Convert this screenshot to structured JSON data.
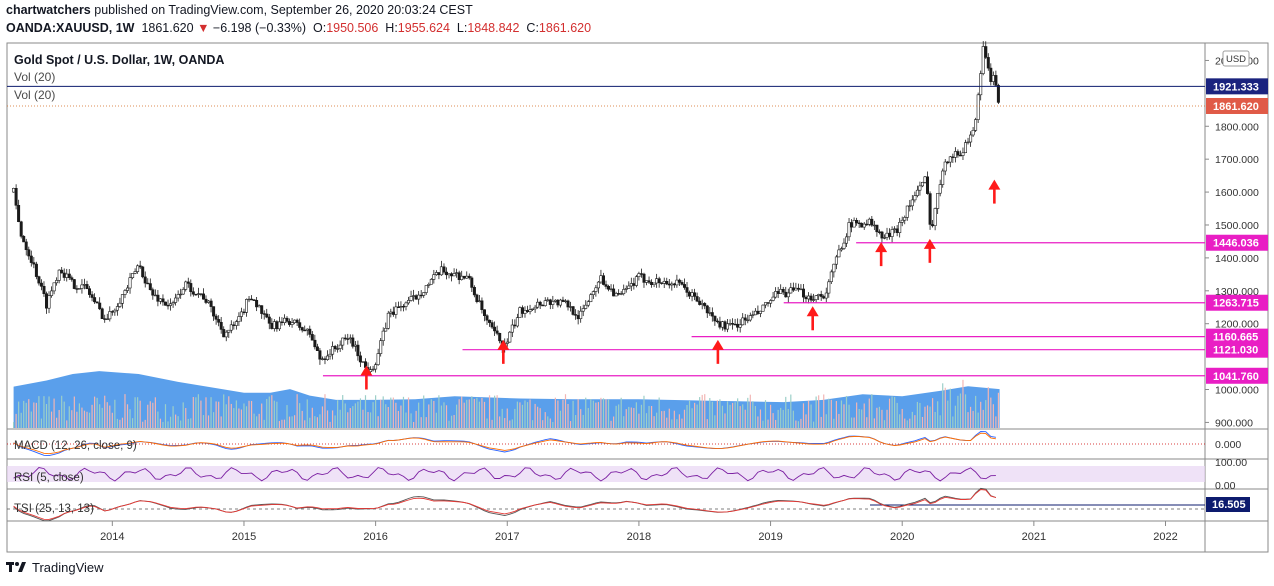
{
  "header": {
    "publisher": "chartwatchers",
    "published_text": "published on TradingView.com, September 26, 2020 20:03:24 CEST",
    "symbol": "OANDA:XAUUSD, 1W",
    "last": "1861.620",
    "change": "−6.198 (−0.33%)",
    "o_label": "O:",
    "o": "1950.506",
    "h_label": "H:",
    "h": "1955.624",
    "l_label": "L:",
    "l": "1848.842",
    "c_label": "C:",
    "c": "1861.620"
  },
  "legend": {
    "title": "Gold Spot / U.S. Dollar, 1W, OANDA",
    "vol1": "Vol (20)",
    "vol2": "Vol (20)"
  },
  "footer": {
    "brand": "TradingView"
  },
  "colors": {
    "up": "#26a69a",
    "down": "#ef5350",
    "candle_body_up": "#ffffff",
    "candle_body_dn": "#1a1a1a",
    "candle_wick": "#1a1a1a",
    "support": "#e91ec4",
    "arrow": "#ff1a1a",
    "volume_area": "#3d8ee8",
    "price_tag": "#e05a47",
    "level_tag": "#1a237e"
  },
  "chart_data": {
    "type": "candlestick",
    "title": "Gold Spot / U.S. Dollar, 1W, OANDA",
    "currency": "USD",
    "x_ticks": [
      "2014",
      "2015",
      "2016",
      "2017",
      "2018",
      "2019",
      "2020",
      "2021",
      "2022"
    ],
    "x_tick_years": [
      2014,
      2015,
      2016,
      2017,
      2018,
      2019,
      2020,
      2021,
      2022
    ],
    "x_range": [
      2013.2,
      2022.3
    ],
    "y_range": [
      880,
      2050
    ],
    "y_ticks": [
      {
        "label": "2000.000",
        "value": 2000
      },
      {
        "label": "1800.000",
        "value": 1800
      },
      {
        "label": "1700.000",
        "value": 1700
      },
      {
        "label": "1600.000",
        "value": 1600
      },
      {
        "label": "1500.000",
        "value": 1500
      },
      {
        "label": "1400.000",
        "value": 1400
      },
      {
        "label": "1300.000",
        "value": 1300
      },
      {
        "label": "1200.000",
        "value": 1200
      },
      {
        "label": "1000.000",
        "value": 1000
      },
      {
        "label": "900.000",
        "value": 900
      }
    ],
    "price_path": [
      [
        2013.25,
        1600
      ],
      [
        2013.3,
        1480
      ],
      [
        2013.4,
        1380
      ],
      [
        2013.5,
        1260
      ],
      [
        2013.6,
        1370
      ],
      [
        2013.7,
        1320
      ],
      [
        2013.8,
        1310
      ],
      [
        2013.95,
        1210
      ],
      [
        2014.1,
        1300
      ],
      [
        2014.2,
        1380
      ],
      [
        2014.3,
        1290
      ],
      [
        2014.45,
        1250
      ],
      [
        2014.55,
        1320
      ],
      [
        2014.7,
        1280
      ],
      [
        2014.85,
        1170
      ],
      [
        2014.95,
        1200
      ],
      [
        2015.05,
        1290
      ],
      [
        2015.2,
        1190
      ],
      [
        2015.35,
        1210
      ],
      [
        2015.5,
        1170
      ],
      [
        2015.58,
        1090
      ],
      [
        2015.8,
        1160
      ],
      [
        2015.93,
        1060
      ],
      [
        2016.0,
        1080
      ],
      [
        2016.1,
        1230
      ],
      [
        2016.3,
        1280
      ],
      [
        2016.5,
        1360
      ],
      [
        2016.7,
        1340
      ],
      [
        2016.85,
        1200
      ],
      [
        2016.98,
        1130
      ],
      [
        2017.1,
        1240
      ],
      [
        2017.3,
        1270
      ],
      [
        2017.45,
        1260
      ],
      [
        2017.55,
        1220
      ],
      [
        2017.7,
        1340
      ],
      [
        2017.85,
        1280
      ],
      [
        2018.0,
        1340
      ],
      [
        2018.1,
        1330
      ],
      [
        2018.3,
        1320
      ],
      [
        2018.45,
        1270
      ],
      [
        2018.6,
        1200
      ],
      [
        2018.7,
        1190
      ],
      [
        2018.9,
        1230
      ],
      [
        2019.05,
        1290
      ],
      [
        2019.2,
        1300
      ],
      [
        2019.3,
        1280
      ],
      [
        2019.42,
        1290
      ],
      [
        2019.5,
        1400
      ],
      [
        2019.6,
        1500
      ],
      [
        2019.75,
        1510
      ],
      [
        2019.85,
        1460
      ],
      [
        2019.95,
        1480
      ],
      [
        2020.05,
        1560
      ],
      [
        2020.18,
        1640
      ],
      [
        2020.22,
        1480
      ],
      [
        2020.32,
        1700
      ],
      [
        2020.45,
        1720
      ],
      [
        2020.55,
        1800
      ],
      [
        2020.6,
        1960
      ],
      [
        2020.62,
        2060
      ],
      [
        2020.66,
        1950
      ],
      [
        2020.7,
        1940
      ],
      [
        2020.74,
        1862
      ]
    ],
    "volume_path": [
      [
        2013.25,
        115
      ],
      [
        2013.5,
        132
      ],
      [
        2013.7,
        150
      ],
      [
        2013.9,
        158
      ],
      [
        2014.2,
        150
      ],
      [
        2014.5,
        128
      ],
      [
        2014.8,
        110
      ],
      [
        2015.0,
        98
      ],
      [
        2015.2,
        98
      ],
      [
        2015.35,
        108
      ],
      [
        2015.5,
        90
      ],
      [
        2015.7,
        78
      ],
      [
        2016.0,
        78
      ],
      [
        2016.3,
        80
      ],
      [
        2016.6,
        88
      ],
      [
        2016.85,
        85
      ],
      [
        2017.1,
        82
      ],
      [
        2017.5,
        80
      ],
      [
        2018.0,
        80
      ],
      [
        2018.5,
        76
      ],
      [
        2018.8,
        74
      ],
      [
        2019.1,
        72
      ],
      [
        2019.4,
        78
      ],
      [
        2019.7,
        94
      ],
      [
        2020.0,
        88
      ],
      [
        2020.3,
        104
      ],
      [
        2020.5,
        116
      ],
      [
        2020.74,
        108
      ]
    ],
    "support_levels": [
      {
        "label": "1446.036",
        "value": 1446.036,
        "from_year": 2019.65
      },
      {
        "label": "1263.715",
        "value": 1263.715,
        "from_year": 2019.1
      },
      {
        "label": "1160.665",
        "value": 1160.665,
        "from_year": 2018.4
      },
      {
        "label": "1121.030",
        "value": 1121.03,
        "from_year": 2016.66
      },
      {
        "label": "1041.760",
        "value": 1041.76,
        "from_year": 2015.6
      }
    ],
    "arrows": [
      {
        "year": 2015.93,
        "value": 1000
      },
      {
        "year": 2016.97,
        "value": 1078
      },
      {
        "year": 2018.6,
        "value": 1078
      },
      {
        "year": 2019.32,
        "value": 1180
      },
      {
        "year": 2019.84,
        "value": 1375
      },
      {
        "year": 2020.21,
        "value": 1385
      },
      {
        "year": 2020.7,
        "value": 1565
      }
    ],
    "resistance_line": {
      "label": "1921.333",
      "value": 1921.333
    },
    "last_price": {
      "label": "1861.620",
      "value": 1861.62
    },
    "macd": {
      "label": "MACD (12, 26, close, 9)",
      "tick": "0.000"
    },
    "rsi": {
      "label": "RSI (5, close)",
      "ticks": [
        "100.00",
        "0.00"
      ]
    },
    "tsi": {
      "label": "TSI (25, 13, 13)",
      "value": "16.505"
    }
  }
}
